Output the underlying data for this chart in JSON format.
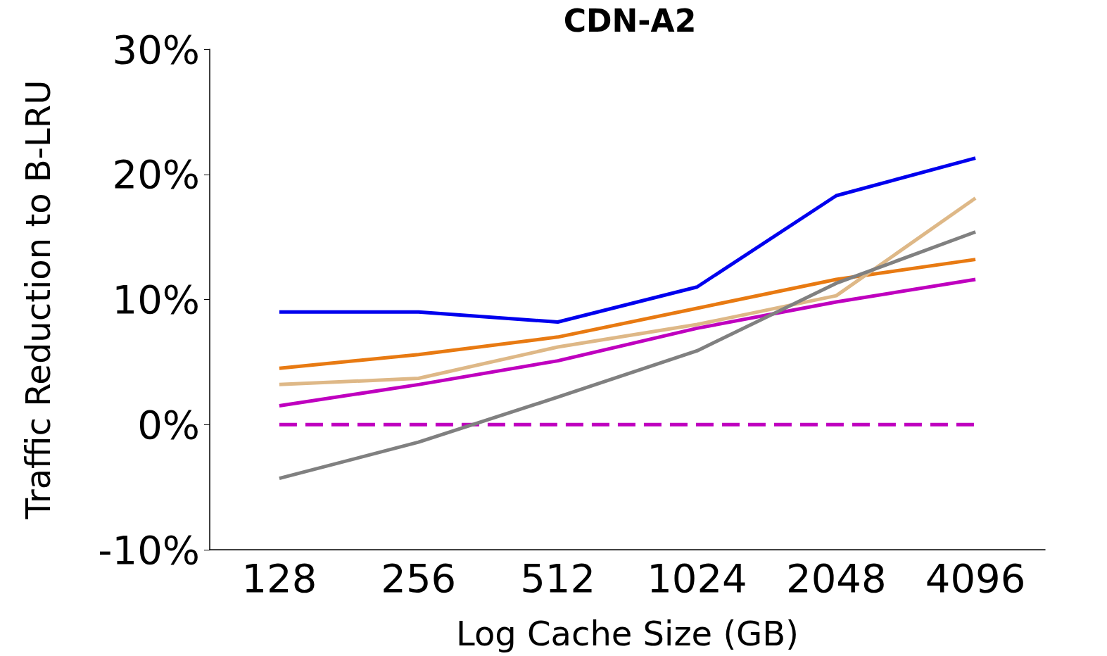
{
  "chart_data": {
    "type": "line",
    "title": "CDN-A2",
    "xlabel": "Log Cache Size (GB)",
    "ylabel": "Traffic Reduction to B-LRU",
    "categories": [
      "128",
      "256",
      "512",
      "1024",
      "2048",
      "4096"
    ],
    "series": [
      {
        "color": "#0000ee",
        "values": [
          9.0,
          9.0,
          8.2,
          11.0,
          18.3,
          21.3
        ]
      },
      {
        "color": "#e87a12",
        "values": [
          4.5,
          5.6,
          7.0,
          9.3,
          11.6,
          13.2
        ]
      },
      {
        "color": "#deb887",
        "values": [
          3.2,
          3.7,
          6.2,
          8.0,
          10.3,
          18.1
        ]
      },
      {
        "color": "#bf00bf",
        "values": [
          1.5,
          3.2,
          5.1,
          7.7,
          9.8,
          11.6
        ]
      },
      {
        "color": "#bf00bf",
        "line_style": "dashed",
        "values": [
          0,
          0,
          0,
          0,
          0,
          0
        ]
      },
      {
        "color": "#808080",
        "values": [
          -4.3,
          -1.4,
          2.2,
          5.9,
          11.3,
          15.4
        ]
      }
    ],
    "ylim": [
      -10,
      30
    ],
    "yticks": [
      {
        "value": -10,
        "label": "-10%"
      },
      {
        "value": 0,
        "label": "0%"
      },
      {
        "value": 10,
        "label": "10%"
      },
      {
        "value": 20,
        "label": "20%"
      },
      {
        "value": 30,
        "label": "30%"
      }
    ],
    "grid": false
  }
}
